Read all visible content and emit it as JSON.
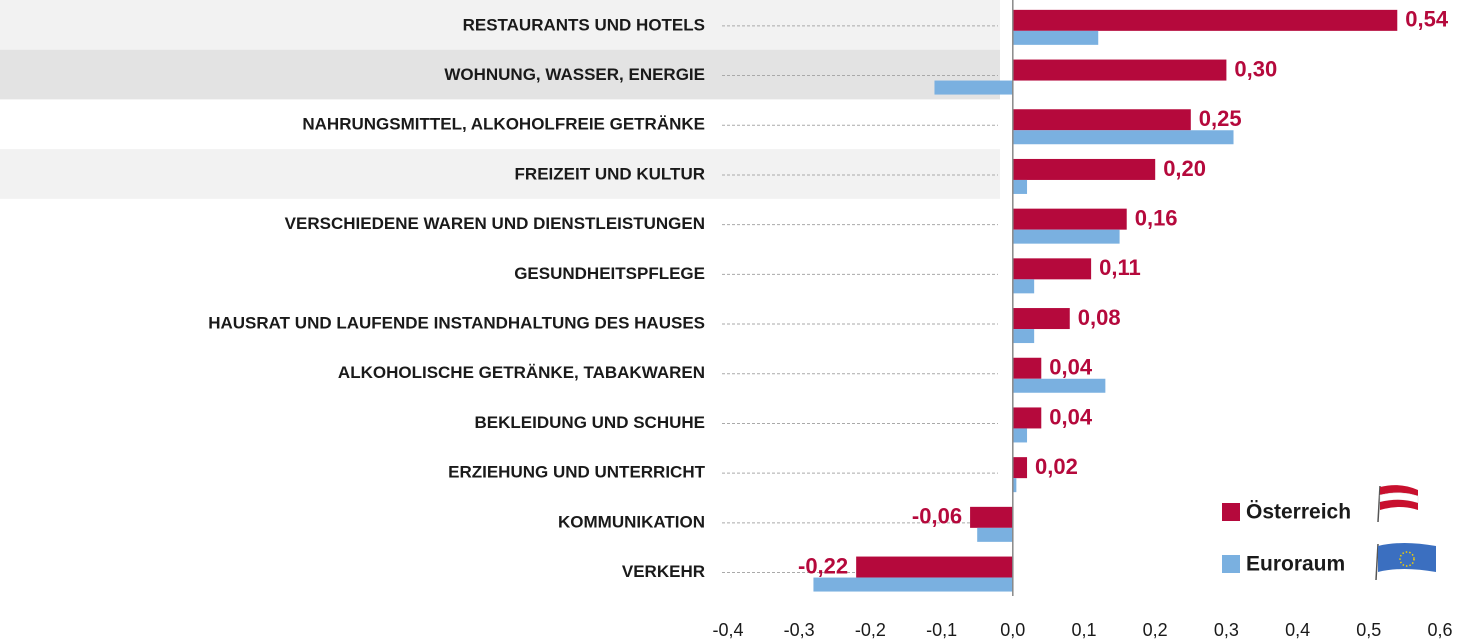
{
  "chart_data": {
    "type": "bar",
    "orientation": "horizontal",
    "categories": [
      "RESTAURANTS UND HOTELS",
      "WOHNUNG, WASSER, ENERGIE",
      "NAHRUNGSMITTEL, ALKOHOLFREIE GETRÄNKE",
      "FREIZEIT UND KULTUR",
      "VERSCHIEDENE WAREN UND DIENSTLEISTUNGEN",
      "GESUNDHEITSPFLEGE",
      "HAUSRAT UND LAUFENDE INSTANDHALTUNG DES HAUSES",
      "ALKOHOLISCHE GETRÄNKE, TABAKWAREN",
      "BEKLEIDUNG UND SCHUHE",
      "ERZIEHUNG UND UNTERRICHT",
      "KOMMUNIKATION",
      "VERKEHR"
    ],
    "series": [
      {
        "name": "Österreich",
        "color": "#b5093c",
        "values": [
          0.54,
          0.3,
          0.25,
          0.2,
          0.16,
          0.11,
          0.08,
          0.04,
          0.04,
          0.02,
          -0.06,
          -0.22
        ],
        "value_labels": [
          "0,54",
          "0,30",
          "0,25",
          "0,20",
          "0,16",
          "0,11",
          "0,08",
          "0,04",
          "0,04",
          "0,02",
          "-0,06",
          "-0,22"
        ]
      },
      {
        "name": "Euroraum",
        "color": "#7ab0e0",
        "values": [
          0.12,
          -0.11,
          0.31,
          0.02,
          0.15,
          0.03,
          0.03,
          0.13,
          0.02,
          0.005,
          -0.05,
          -0.28
        ]
      }
    ],
    "xlim": [
      -0.4,
      0.6
    ],
    "xticks": [
      {
        "value": -0.4,
        "label": "-0,4"
      },
      {
        "value": -0.3,
        "label": "-0,3"
      },
      {
        "value": -0.2,
        "label": "-0,2"
      },
      {
        "value": -0.1,
        "label": "-0,1"
      },
      {
        "value": 0,
        "label": "0,0"
      },
      {
        "value": 0.1,
        "label": "0,1"
      },
      {
        "value": 0.2,
        "label": "0,2"
      },
      {
        "value": 0.3,
        "label": "0,3"
      },
      {
        "value": 0.4,
        "label": "0,4"
      },
      {
        "value": 0.5,
        "label": "0,5"
      },
      {
        "value": 0.6,
        "label": "0,6"
      }
    ],
    "legend": "lower right"
  }
}
